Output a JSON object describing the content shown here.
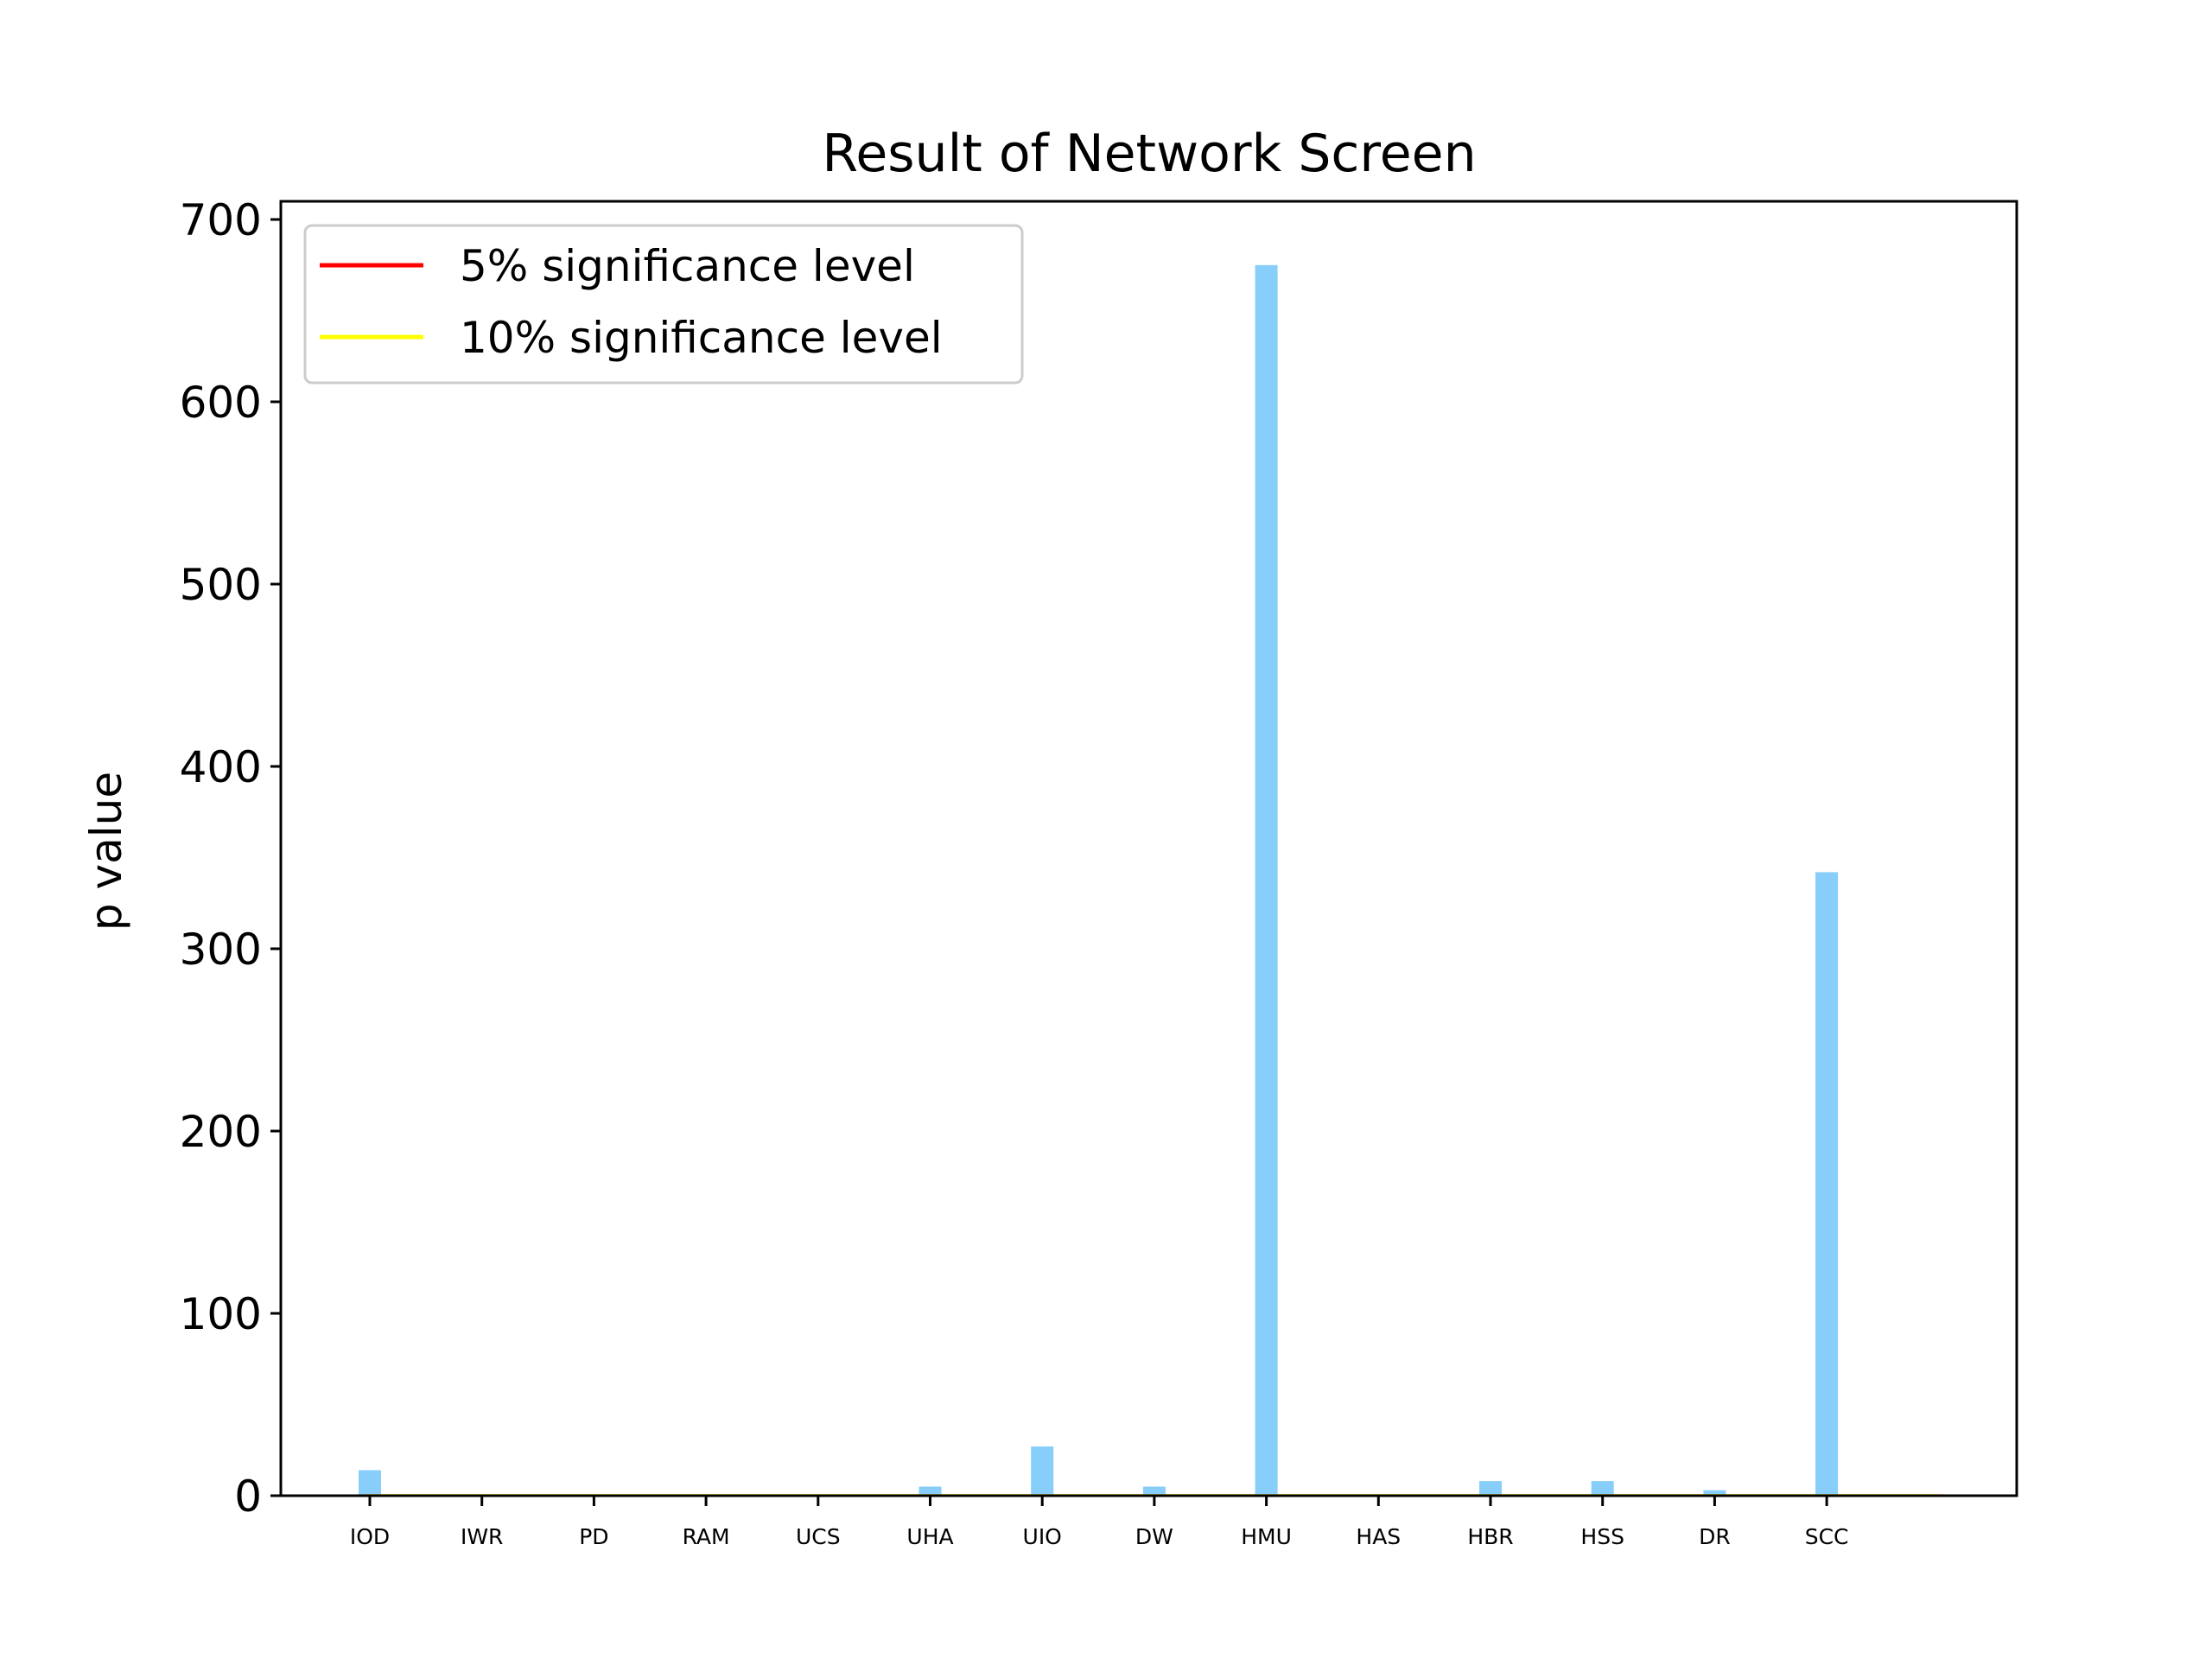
{
  "chart_data": {
    "type": "bar",
    "title": "Result of Network Screen",
    "xlabel": "",
    "ylabel": "p value",
    "categories": [
      "IOD",
      "IWR",
      "PD",
      "RAM",
      "UCS",
      "UHA",
      "UIO",
      "DW",
      "HMU",
      "HAS",
      "HBR",
      "HSS",
      "DR",
      "SCC"
    ],
    "values": [
      14,
      0.5,
      0.5,
      0.5,
      0.5,
      5,
      27,
      5,
      675,
      0.5,
      8,
      8,
      3,
      342
    ],
    "ylim": [
      0,
      710
    ],
    "yticks": [
      0,
      100,
      200,
      300,
      400,
      500,
      600,
      700
    ],
    "bar_color": "#87cefa",
    "grid": false,
    "legend_position": "upper left",
    "reference_lines": [
      {
        "name": "5% significance level",
        "y": 0.05,
        "color": "#ff0000"
      },
      {
        "name": "10% significance level",
        "y": 0.1,
        "color": "#ffff00"
      }
    ]
  }
}
